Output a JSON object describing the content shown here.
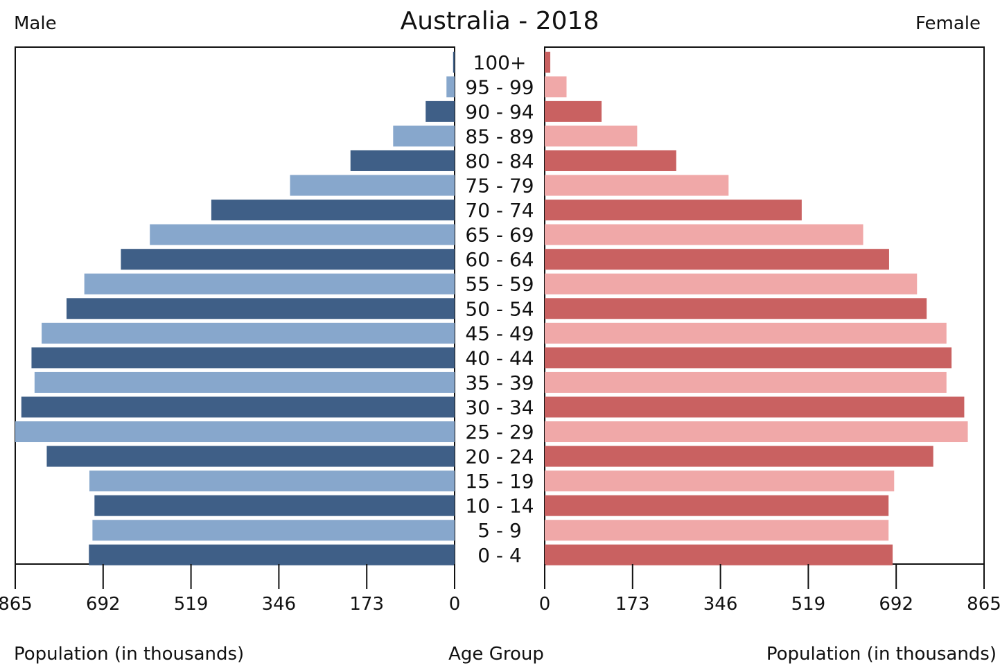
{
  "chart_data": {
    "type": "bar",
    "title": "Australia - 2018",
    "left_label": "Male",
    "right_label": "Female",
    "xlabel_left": "Population (in thousands)",
    "xlabel_center": "Age Group",
    "xlabel_right": "Population (in thousands)",
    "xlim": [
      0,
      865
    ],
    "ticks": [
      "865",
      "692",
      "519",
      "346",
      "173",
      "0"
    ],
    "ticks_right": [
      "0",
      "173",
      "519",
      "692",
      "865"
    ],
    "tick_values": [
      865,
      692,
      519,
      346,
      173,
      0
    ],
    "tick_values_right": [
      0,
      173,
      346,
      519,
      692,
      865
    ],
    "tick_346_right": "346",
    "categories": [
      "100+",
      "95 - 99",
      "90 - 94",
      "85 - 89",
      "80 - 84",
      "75 - 79",
      "70 - 74",
      "65 - 69",
      "60 - 64",
      "55 - 59",
      "50 - 54",
      "45 - 49",
      "40 - 44",
      "35 - 39",
      "30 - 34",
      "25 - 29",
      "20 - 24",
      "15 - 19",
      "10 - 14",
      "5 - 9",
      "0 - 4"
    ],
    "series": [
      {
        "name": "Male",
        "values": [
          3,
          16,
          57,
          121,
          205,
          324,
          479,
          600,
          657,
          729,
          764,
          813,
          833,
          827,
          853,
          866,
          803,
          719,
          709,
          713,
          720
        ]
      },
      {
        "name": "Female",
        "values": [
          11,
          43,
          112,
          182,
          259,
          362,
          506,
          627,
          678,
          733,
          752,
          791,
          801,
          791,
          826,
          833,
          765,
          688,
          677,
          677,
          685
        ]
      }
    ],
    "colors": {
      "male_dark": "#3f5f87",
      "male_light": "#87a7cc",
      "female_dark": "#c96161",
      "female_light": "#f0a8a8"
    }
  }
}
